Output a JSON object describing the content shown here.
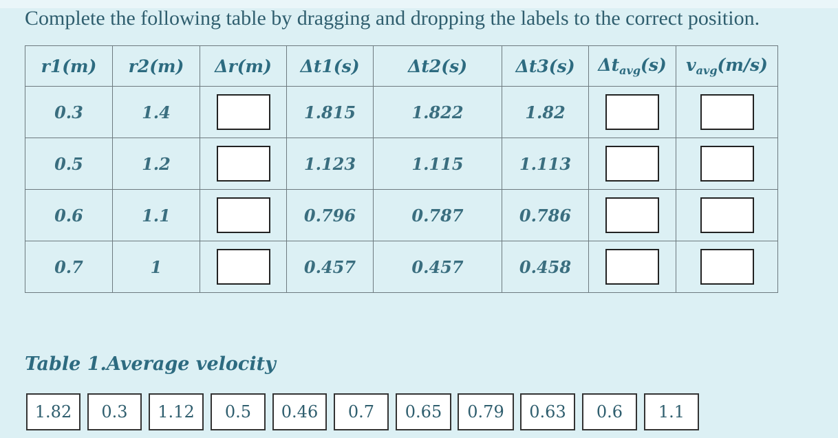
{
  "instruction": "Complete the following table by dragging and dropping the labels to the correct position.",
  "table": {
    "headers": [
      {
        "main": "r1(m)",
        "sub": "",
        "tail": ""
      },
      {
        "main": "r2(m)",
        "sub": "",
        "tail": ""
      },
      {
        "main": "Δr(m)",
        "sub": "",
        "tail": ""
      },
      {
        "main": "Δt1(s)",
        "sub": "",
        "tail": ""
      },
      {
        "main": "Δt2(s)",
        "sub": "",
        "tail": ""
      },
      {
        "main": "Δt3(s)",
        "sub": "",
        "tail": ""
      },
      {
        "main": "Δt",
        "sub": "avg",
        "tail": "(s)"
      },
      {
        "main": "v",
        "sub": "avg",
        "tail": "(m/s)"
      }
    ],
    "rows": [
      {
        "r1": "0.3",
        "r2": "1.4",
        "t1": "1.815",
        "t2": "1.822",
        "t3": "1.82"
      },
      {
        "r1": "0.5",
        "r2": "1.2",
        "t1": "1.123",
        "t2": "1.115",
        "t3": "1.113"
      },
      {
        "r1": "0.6",
        "r2": "1.1",
        "t1": "0.796",
        "t2": "0.787",
        "t3": "0.786"
      },
      {
        "r1": "0.7",
        "r2": "1",
        "t1": "0.457",
        "t2": "0.457",
        "t3": "0.458"
      }
    ]
  },
  "caption": "Table 1.Average velocity",
  "labels": [
    "1.82",
    "0.3",
    "1.12",
    "0.5",
    "0.46",
    "0.7",
    "0.65",
    "0.79",
    "0.63",
    "0.6",
    "1.1"
  ]
}
